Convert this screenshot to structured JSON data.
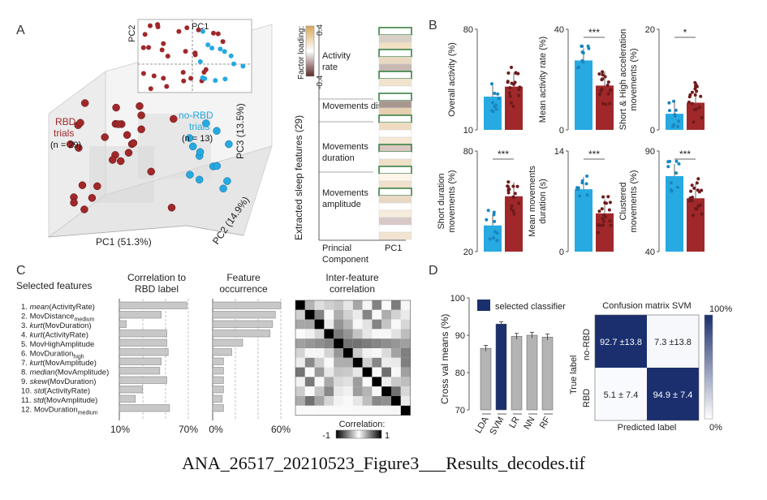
{
  "caption": "ANA_26517_20210523_Figure3___Results_decodes.tif",
  "colors": {
    "rbd": "#a0282a",
    "norbd": "#27a9e1",
    "rbd_dot": "#6e1a1c",
    "norbd_dot": "#1a86c0",
    "selected": "#1b2f6e",
    "bar_grey": "#b4b4b4",
    "green_box": "#2f7a3a"
  },
  "panelA": {
    "letter": "A",
    "rbd_label": [
      "RBD",
      "trials"
    ],
    "rbd_n": "(n = 29)",
    "norbd_label": [
      "no-RBD",
      "trials"
    ],
    "norbd_n": "(n = 13)",
    "axis_pc1": "PC1 (51.3%)",
    "axis_pc2": "PC2 (14.9%)",
    "axis_pc3": "PC3 (13.5%)",
    "inset_x": "PC1",
    "inset_y": "PC2",
    "colorbar_title": "Factor loading:",
    "colorbar_max": "0.4",
    "colorbar_min": "-0.4",
    "loading_ylabel": "Extracted sleep features (29)",
    "groups": [
      "Activity rate",
      "Movements distance",
      "Movements duration",
      "Movements amplitude"
    ],
    "principal": [
      "Princial",
      "Component"
    ],
    "pc1": "PC1"
  },
  "panelB": {
    "letter": "B",
    "charts": [
      {
        "ylabel": [
          "Overall activity (%)"
        ],
        "ymin": "10",
        "ymax": "80",
        "sig": "",
        "norbd": 0.33,
        "rbd": 0.43
      },
      {
        "ylabel": [
          "Mean activity rate (%)"
        ],
        "ymin": "0",
        "ymax": "40",
        "sig": "***",
        "norbd": 0.69,
        "rbd": 0.44
      },
      {
        "ylabel": [
          "Short & High acceleration",
          "movements (%)"
        ],
        "ymin": "0",
        "ymax": "20",
        "sig": "*",
        "norbd": 0.16,
        "rbd": 0.27
      },
      {
        "ylabel": [
          "Short duration",
          "movements (%)"
        ],
        "ymin": "20",
        "ymax": "80",
        "sig": "***",
        "norbd": 0.26,
        "rbd": 0.55
      },
      {
        "ylabel": [
          "Mean movements",
          "duration (s)"
        ],
        "ymin": "0",
        "ymax": "14",
        "sig": "***",
        "norbd": 0.62,
        "rbd": 0.38
      },
      {
        "ylabel": [
          "Clustered",
          "movements (%)"
        ],
        "ymin": "40",
        "ymax": "90",
        "sig": "***",
        "norbd": 0.75,
        "rbd": 0.53
      }
    ]
  },
  "panelC": {
    "letter": "C",
    "title": "Selected features",
    "features": [
      {
        "n": "1.",
        "stat": "mean",
        "rest": "(ActivityRate)"
      },
      {
        "n": "2.",
        "stat": "",
        "rest": "MovDistance",
        "sub": "medium"
      },
      {
        "n": "3.",
        "stat": "kurt",
        "rest": "(MovDuration)"
      },
      {
        "n": "4.",
        "stat": "kurt",
        "rest": "(ActivityRate)"
      },
      {
        "n": "5.",
        "stat": "",
        "rest": "MovHighAmplitude"
      },
      {
        "n": "6.",
        "stat": "",
        "rest": "MovDuration",
        "sub": "high"
      },
      {
        "n": "7.",
        "stat": "kurt",
        "rest": "(MovAmplitude)"
      },
      {
        "n": "8.",
        "stat": "median",
        "rest": "(MovAmplitude)"
      },
      {
        "n": "9.",
        "stat": "skew",
        "rest": "(MovDuration)"
      },
      {
        "n": "10.",
        "stat": "std",
        "rest": "(ActivityRate)"
      },
      {
        "n": "11.",
        "stat": "std",
        "rest": "(MovAmplitude)"
      },
      {
        "n": "12.",
        "stat": "",
        "rest": "MovDuration",
        "sub": "medium"
      }
    ],
    "corr_title": [
      "Correlation to",
      "RBD label"
    ],
    "corr_min": "10%",
    "corr_max": "70%",
    "occ_title": [
      "Feature",
      "occurrence"
    ],
    "occ_min": "0%",
    "occ_max": "60%",
    "inter_title": [
      "Inter-feature",
      "correlation"
    ],
    "corrbar_title": "Correlation:",
    "corrbar_min": "-1",
    "corrbar_max": "1"
  },
  "panelD": {
    "letter": "D",
    "legend": "selected classifier",
    "ylabel": "Cross val means (%)",
    "yticks": [
      "70",
      "80",
      "90",
      "100"
    ],
    "cm_title": "Confusion matrix SVM",
    "cm_cells": [
      "92.7 ±13.8",
      "7.3 ±13.8",
      "5.1 ± 7.4",
      "94.9 ± 7.4"
    ],
    "true_label": "True label",
    "pred_label": "Predicted label",
    "row_labels": [
      "no-RBD",
      "RBD"
    ],
    "cbar_max": "100%",
    "cbar_min": "0%"
  },
  "chart_data": {
    "type": "bar",
    "title": "",
    "categories": [
      "LDA",
      "SVM",
      "LR",
      "NN",
      "RF"
    ],
    "values": [
      86.5,
      93.0,
      89.7,
      90.0,
      89.5
    ],
    "errors": [
      0.8,
      0.6,
      0.8,
      0.8,
      0.8
    ],
    "selected": "SVM",
    "ylabel": "Cross val means (%)",
    "ylim": [
      70,
      100
    ],
    "legend": "top"
  }
}
